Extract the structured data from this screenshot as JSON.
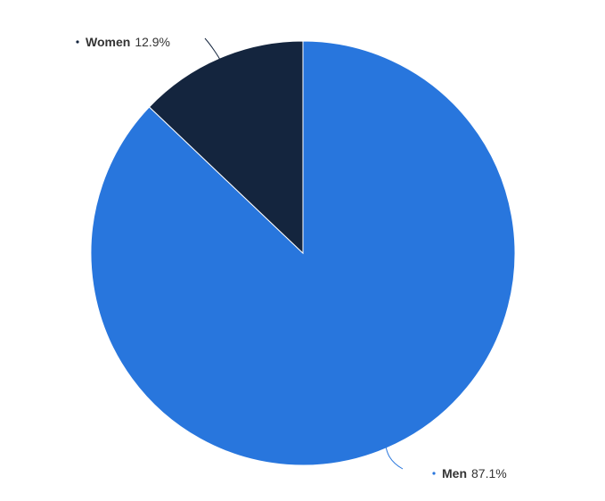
{
  "chart_data": {
    "type": "pie",
    "title": "",
    "start_angle_deg": 0,
    "direction": "clockwise",
    "series": [
      {
        "values": [
          {
            "name": "Men",
            "value": 87.1,
            "label_value": "87.1%",
            "color": "#2876DD"
          },
          {
            "name": "Women",
            "value": 12.9,
            "label_value": "12.9%",
            "color": "#14253E"
          }
        ]
      }
    ]
  }
}
